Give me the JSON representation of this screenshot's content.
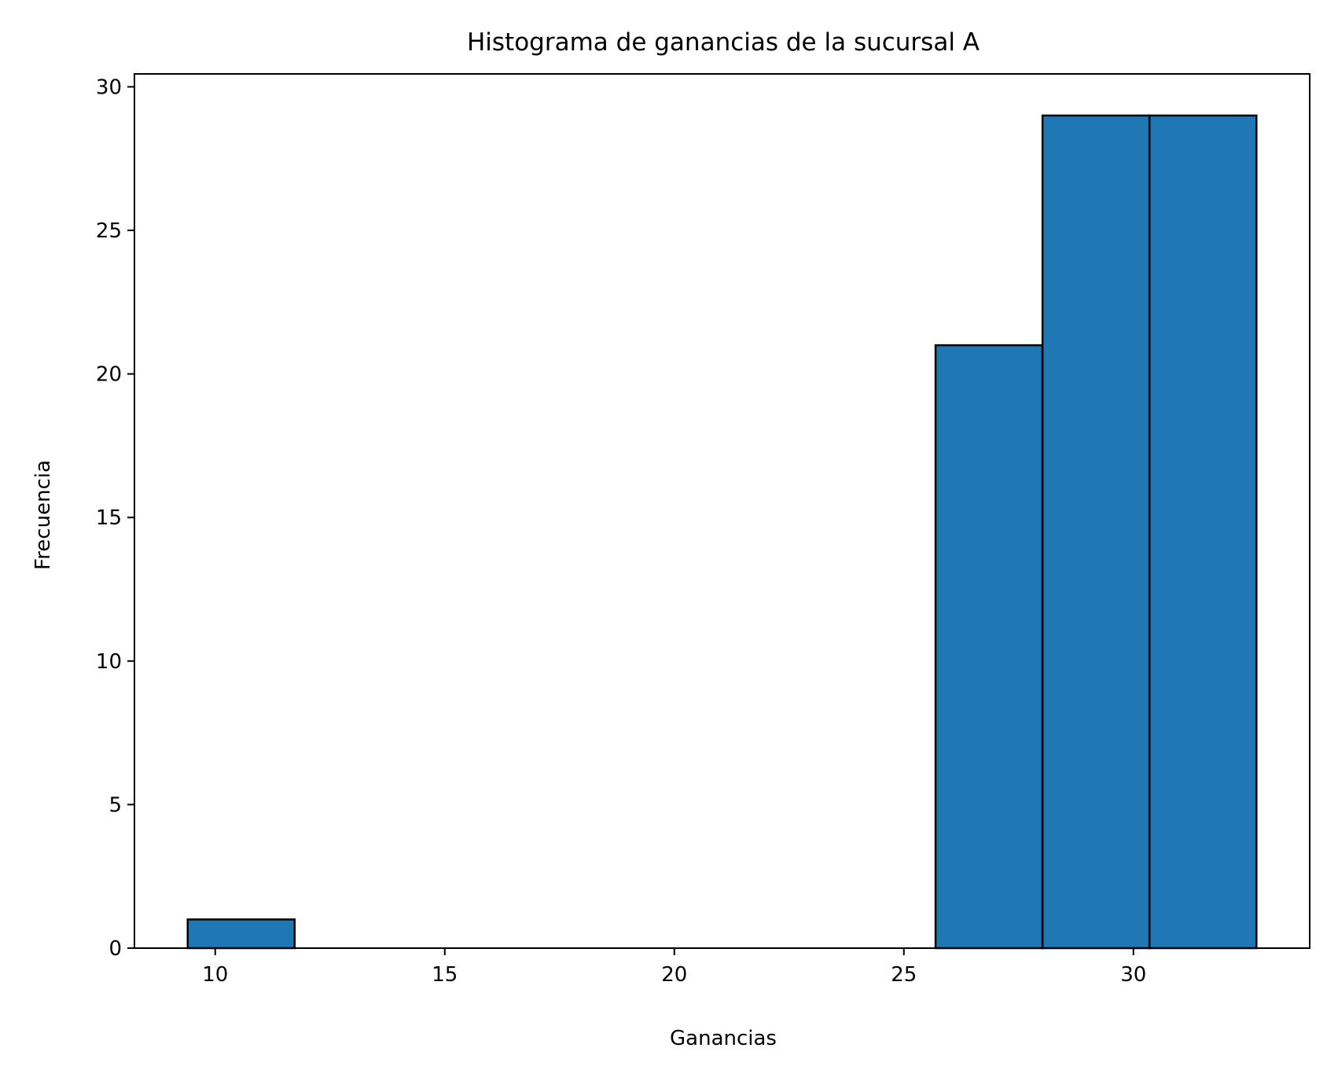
{
  "chart_data": {
    "type": "bar",
    "subtype": "histogram",
    "title": "Histograma de ganancias de la sucursal A",
    "xlabel": "Ganancias",
    "ylabel": "Frecuencia",
    "bins": [
      {
        "x0": 9.4,
        "x1": 11.73,
        "count": 1
      },
      {
        "x0": 11.73,
        "x1": 14.06,
        "count": 0
      },
      {
        "x0": 14.06,
        "x1": 16.38,
        "count": 0
      },
      {
        "x0": 16.38,
        "x1": 18.71,
        "count": 0
      },
      {
        "x0": 18.71,
        "x1": 21.04,
        "count": 0
      },
      {
        "x0": 21.04,
        "x1": 23.37,
        "count": 0
      },
      {
        "x0": 23.37,
        "x1": 25.69,
        "count": 0
      },
      {
        "x0": 25.69,
        "x1": 28.02,
        "count": 21
      },
      {
        "x0": 28.02,
        "x1": 30.35,
        "count": 29
      },
      {
        "x0": 30.35,
        "x1": 32.68,
        "count": 29
      }
    ],
    "xlim": [
      8.24,
      33.84
    ],
    "ylim": [
      0,
      30.45
    ],
    "xticks": [
      10,
      15,
      20,
      25,
      30
    ],
    "yticks": [
      0,
      5,
      10,
      15,
      20,
      25,
      30
    ],
    "grid": false,
    "legend": "none",
    "colors": {
      "bar_fill": "#1f77b4",
      "bar_edge": "#000000",
      "axes": "#000000",
      "background": "#ffffff"
    }
  }
}
